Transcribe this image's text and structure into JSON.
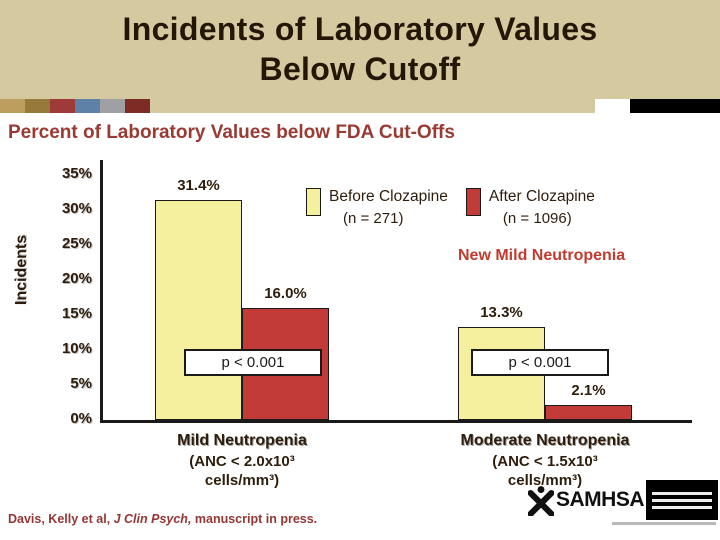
{
  "slide": {
    "title_line1": "Incidents of Laboratory Values",
    "title_line2": "Below Cutoff",
    "subtitle": "Percent of Laboratory Values below FDA Cut-Offs"
  },
  "chart_data": {
    "type": "bar",
    "title": "Percent of Laboratory Values below FDA Cut-Offs",
    "ylabel": "Incidents",
    "xlabel": "",
    "ylim": [
      0,
      35
    ],
    "ytick_labels": [
      "0%",
      "5%",
      "10%",
      "15%",
      "20%",
      "25%",
      "30%",
      "35%"
    ],
    "grid": false,
    "legend_position": "top-right",
    "categories": [
      "Mild Neutropenia (ANC < 2.0x10³ cells/mm³)",
      "Moderate Neutropenia (ANC < 1.5x10³ cells/mm³)"
    ],
    "series": [
      {
        "name": "Before Clozapine (n = 271)",
        "color": "#F4F09E",
        "values": [
          31.4,
          13.3
        ]
      },
      {
        "name": "After Clozapine (n = 1096)",
        "color": "#C23B38",
        "values": [
          16.0,
          2.1
        ]
      }
    ],
    "bar_value_labels": [
      "31.4%",
      "16.0%",
      "13.3%",
      "2.1%"
    ],
    "annotations": [
      "New Mild Neutropenia",
      "p < 0.001",
      "p < 0.001"
    ]
  },
  "legend": {
    "entries": [
      {
        "line1": "Before Clozapine",
        "line2": "(n = 271)",
        "color": "#F4F09E"
      },
      {
        "line1": "After Clozapine",
        "line2": "(n = 1096)",
        "color": "#C23B38"
      }
    ]
  },
  "annotation": "New Mild Neutropenia",
  "p_boxes": [
    "p < 0.001",
    "p < 0.001"
  ],
  "axis_labels": [
    {
      "line1": "Mild Neutropenia",
      "line2": "(ANC < 2.0x10³",
      "line3": "cells/mm³)"
    },
    {
      "line1": "Moderate Neutropenia",
      "line2": "(ANC < 1.5x10³",
      "line3": "cells/mm³)"
    }
  ],
  "citation": {
    "prefix": "Davis, Kelly et al, ",
    "italic": "J Clin Psych,",
    "suffix": " manuscript in press."
  },
  "logo": {
    "text": "SAMHSA"
  },
  "strip": {
    "squares": [
      "#BE9E5F",
      "#97793B",
      "#9E3A38",
      "#5E81A8",
      "#9EA0A3",
      "#7E2A25"
    ],
    "bar": "#D5C9A0"
  },
  "colors": {
    "banner_bg": "#D5C9A0",
    "title_text": "#241708",
    "subtitle_text": "#9A3A32",
    "axis_text": "#2E1D0C",
    "annotation_red": "#C23B2E",
    "citation_text": "#943634",
    "axis_line": "#1A1A1A"
  }
}
